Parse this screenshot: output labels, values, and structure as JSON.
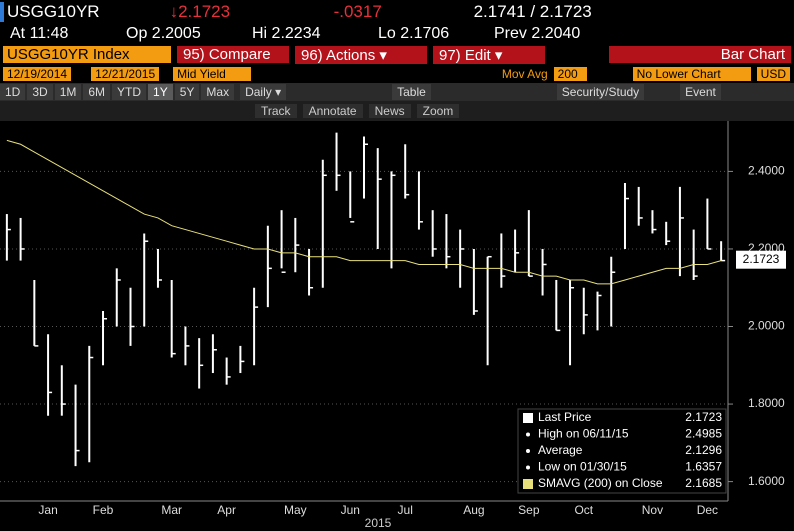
{
  "header": {
    "ticker": "USGG10YR",
    "last": "↓2.1723",
    "change": "-.0317",
    "bid_ask": "2.1741 / 2.1723",
    "time": "At 11:48",
    "open": "Op 2.2005",
    "high": "Hi 2.2234",
    "low": "Lo 2.1706",
    "prev": "Prev 2.2040"
  },
  "toolbar": {
    "security": "USGG10YR Index",
    "compare": "95) Compare",
    "actions": "96) Actions ▾",
    "edit": "97) Edit ▾",
    "chart_type": "Bar Chart"
  },
  "settings": {
    "start_date": "12/19/2014",
    "end_date": "12/21/2015",
    "field": "Mid Yield",
    "study": "Mov Avg",
    "period": "200",
    "lower_chart": "No Lower Chart",
    "currency": "USD"
  },
  "periods": [
    "1D",
    "3D",
    "1M",
    "6M",
    "YTD",
    "1Y",
    "5Y",
    "Max"
  ],
  "frequency": "Daily ▾",
  "table": "Table",
  "security_study": "Security/Study",
  "event": "Event",
  "tools": [
    "Track",
    "Annotate",
    "News",
    "Zoom"
  ],
  "chart_data": {
    "type": "bar",
    "categories": [
      null,
      null,
      null,
      "Jan",
      null,
      null,
      null,
      "Feb",
      null,
      null,
      null,
      null,
      "Mar",
      null,
      null,
      null,
      "Apr",
      null,
      null,
      null,
      null,
      "May",
      null,
      null,
      null,
      "Jun",
      null,
      null,
      null,
      "Jul",
      null,
      null,
      null,
      null,
      "Aug",
      null,
      null,
      null,
      "Sep",
      null,
      null,
      null,
      "Oct",
      null,
      null,
      null,
      null,
      "Nov",
      null,
      null,
      null,
      "Dec",
      null
    ],
    "x_title": "2015",
    "series": [
      {
        "color": "#ffffff",
        "high": [
          2.29,
          2.28,
          2.12,
          1.98,
          1.9,
          1.85,
          1.95,
          2.04,
          2.15,
          2.1,
          2.24,
          2.2,
          2.12,
          2.0,
          1.97,
          1.98,
          1.92,
          1.95,
          2.1,
          2.26,
          2.3,
          2.28,
          2.2,
          2.43,
          2.5,
          2.4,
          2.49,
          2.46,
          2.4,
          2.47,
          2.4,
          2.3,
          2.29,
          2.25,
          2.2,
          2.18,
          2.24,
          2.25,
          2.3,
          2.2,
          2.12,
          2.12,
          2.1,
          2.09,
          2.18,
          2.37,
          2.36,
          2.3,
          2.27,
          2.36,
          2.25,
          2.33,
          2.22
        ],
        "low": [
          2.17,
          2.17,
          1.95,
          1.77,
          1.77,
          1.64,
          1.65,
          1.9,
          2.0,
          1.95,
          2.0,
          2.1,
          1.92,
          1.9,
          1.84,
          1.88,
          1.85,
          1.88,
          1.9,
          2.05,
          2.15,
          2.14,
          2.08,
          2.1,
          2.35,
          2.28,
          2.33,
          2.2,
          2.15,
          2.33,
          2.25,
          2.18,
          2.15,
          2.1,
          2.03,
          1.9,
          2.1,
          2.14,
          2.13,
          2.08,
          1.99,
          1.9,
          1.98,
          1.99,
          2.0,
          2.2,
          2.26,
          2.24,
          2.21,
          2.13,
          2.12,
          2.2,
          2.17
        ],
        "close": [
          2.25,
          2.2,
          1.95,
          1.83,
          1.8,
          1.68,
          1.92,
          2.02,
          2.12,
          2.0,
          2.22,
          2.12,
          1.93,
          1.95,
          1.9,
          1.94,
          1.87,
          1.91,
          2.05,
          2.15,
          2.14,
          2.21,
          2.1,
          2.39,
          2.39,
          2.27,
          2.47,
          2.38,
          2.39,
          2.34,
          2.27,
          2.2,
          2.18,
          2.2,
          2.04,
          2.18,
          2.13,
          2.19,
          2.13,
          2.16,
          1.99,
          2.1,
          2.03,
          2.08,
          2.14,
          2.33,
          2.28,
          2.25,
          2.22,
          2.28,
          2.13,
          2.2,
          2.17
        ]
      },
      {
        "color": "#e8e07a",
        "values": [
          2.48,
          2.47,
          2.45,
          2.43,
          2.41,
          2.39,
          2.37,
          2.35,
          2.33,
          2.31,
          2.29,
          2.28,
          2.26,
          2.25,
          2.24,
          2.23,
          2.22,
          2.21,
          2.2,
          2.2,
          2.19,
          2.19,
          2.18,
          2.18,
          2.18,
          2.17,
          2.17,
          2.17,
          2.17,
          2.17,
          2.16,
          2.16,
          2.16,
          2.16,
          2.15,
          2.15,
          2.15,
          2.14,
          2.14,
          2.13,
          2.13,
          2.12,
          2.12,
          2.11,
          2.11,
          2.12,
          2.13,
          2.14,
          2.15,
          2.15,
          2.16,
          2.16,
          2.17
        ]
      }
    ],
    "ylim": [
      1.55,
      2.53
    ],
    "yticks": [
      {
        "value": 1.6,
        "label": "1.6000"
      },
      {
        "value": 1.8,
        "label": "1.8000"
      },
      {
        "value": 2.0,
        "label": "2.0000"
      },
      {
        "value": 2.2,
        "label": "2.2000"
      },
      {
        "value": 2.4,
        "label": "2.4000"
      }
    ],
    "grid": true,
    "last_price": {
      "value": 2.1723,
      "label": "2.1723"
    },
    "legend": [
      {
        "label": "Last Price",
        "value": "2.1723"
      },
      {
        "label": "High on 06/11/15",
        "value": "2.4985"
      },
      {
        "label": "Average",
        "value": "2.1296"
      },
      {
        "label": "Low on 01/30/15",
        "value": "1.6357"
      },
      {
        "label": "SMAVG (200) on Close",
        "value": "2.1685"
      }
    ],
    "legend_corner": "bottom-right"
  }
}
